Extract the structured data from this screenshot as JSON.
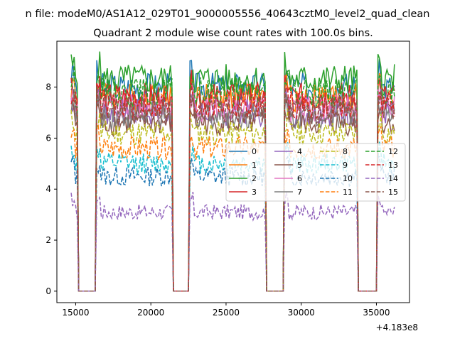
{
  "chart_data": {
    "type": "line",
    "suptitle": "n file: modeM0/AS1A12_029T01_9000005556_40643cztM0_level2_quad_clean",
    "title": "Quadrant 2 module wise count rates with 100.0s bins.",
    "xlabel": "",
    "ylabel": "",
    "x_offset_label": "+4.183e8",
    "x_range": [
      14700,
      36200
    ],
    "xlim": [
      13750,
      37200
    ],
    "ylim": [
      -0.45,
      9.8
    ],
    "xticks": [
      15000,
      20000,
      25000,
      30000,
      35000
    ],
    "xtick_labels": [
      "15000",
      "20000",
      "25000",
      "30000",
      "35000"
    ],
    "yticks": [
      0,
      2,
      4,
      6,
      8
    ],
    "ytick_labels": [
      "0",
      "2",
      "4",
      "6",
      "8"
    ],
    "grid": false,
    "legend_placement": "center-right",
    "legend_columns": 4,
    "gaps": [
      [
        15100,
        16400
      ],
      [
        21400,
        22600
      ],
      [
        27600,
        28900
      ],
      [
        33700,
        35100
      ]
    ],
    "series": [
      {
        "name": "0",
        "color": "#1f77b4",
        "style": "solid",
        "level": 8.0
      },
      {
        "name": "1",
        "color": "#ff7f0e",
        "style": "solid",
        "level": 7.6
      },
      {
        "name": "2",
        "color": "#2ca02c",
        "style": "solid",
        "level": 8.3
      },
      {
        "name": "3",
        "color": "#d62728",
        "style": "solid",
        "level": 7.6
      },
      {
        "name": "4",
        "color": "#9467bd",
        "style": "solid",
        "level": 7.0
      },
      {
        "name": "5",
        "color": "#8c564b",
        "style": "solid",
        "level": 6.6
      },
      {
        "name": "6",
        "color": "#e377c2",
        "style": "solid",
        "level": 7.2
      },
      {
        "name": "7",
        "color": "#7f7f7f",
        "style": "solid",
        "level": 6.9
      },
      {
        "name": "8",
        "color": "#bcbd22",
        "style": "dashed",
        "level": 6.2
      },
      {
        "name": "9",
        "color": "#17becf",
        "style": "dashed",
        "level": 5.0
      },
      {
        "name": "10",
        "color": "#1f77b4",
        "style": "dashed",
        "level": 4.5
      },
      {
        "name": "11",
        "color": "#ff7f0e",
        "style": "dashed",
        "level": 5.6
      },
      {
        "name": "12",
        "color": "#2ca02c",
        "style": "dashed",
        "level": 7.8
      },
      {
        "name": "13",
        "color": "#d62728",
        "style": "dashed",
        "level": 7.3
      },
      {
        "name": "14",
        "color": "#9467bd",
        "style": "dashed",
        "level": 3.1
      },
      {
        "name": "15",
        "color": "#8c564b",
        "style": "dashed",
        "level": 7.1
      }
    ]
  }
}
